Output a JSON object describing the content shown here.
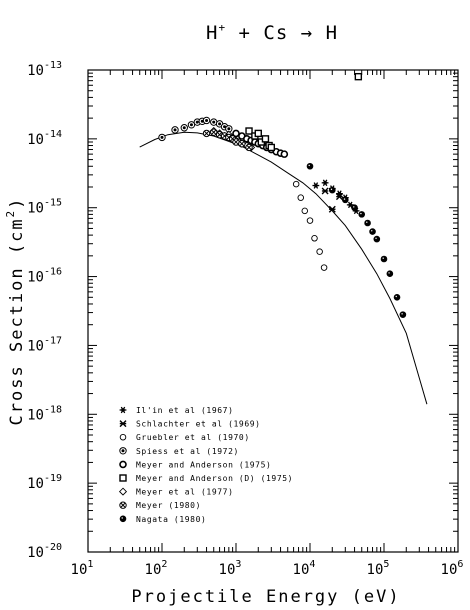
{
  "chart_data": {
    "type": "scatter",
    "title": "H⁺ + Cs → H",
    "title_parts": {
      "left": "H",
      "sup": "+",
      "right": " + Cs → H"
    },
    "xlabel": "Projectile Energy (eV)",
    "ylabel": "Cross Section (cm²)",
    "ylabel_parts": {
      "base": "Cross Section (cm",
      "sup": "2",
      "close": ")"
    },
    "x_scale": "log",
    "y_scale": "log",
    "xlim": [
      10,
      1000000
    ],
    "ylim": [
      1e-20,
      1e-13
    ],
    "x_ticks": [
      {
        "value": 10,
        "base": "10",
        "exp": "1"
      },
      {
        "value": 100,
        "base": "10",
        "exp": "2"
      },
      {
        "value": 1000,
        "base": "10",
        "exp": "3"
      },
      {
        "value": 10000,
        "base": "10",
        "exp": "4"
      },
      {
        "value": 100000,
        "base": "10",
        "exp": "5"
      },
      {
        "value": 1000000,
        "base": "10",
        "exp": "6"
      }
    ],
    "y_ticks": [
      {
        "value": 1e-20,
        "base": "10",
        "exp": "-20"
      },
      {
        "value": 1e-19,
        "base": "10",
        "exp": "-19"
      },
      {
        "value": 1e-18,
        "base": "10",
        "exp": "-18"
      },
      {
        "value": 1e-17,
        "base": "10",
        "exp": "-17"
      },
      {
        "value": 1e-16,
        "base": "10",
        "exp": "-16"
      },
      {
        "value": 1e-15,
        "base": "10",
        "exp": "-15"
      },
      {
        "value": 1e-14,
        "base": "10",
        "exp": "-14"
      },
      {
        "value": 1e-13,
        "base": "10",
        "exp": "-13"
      }
    ],
    "grid": false,
    "legend_position": "lower-left",
    "fit_curve": {
      "x": [
        50,
        80,
        120,
        200,
        300,
        500,
        800,
        1200,
        2000,
        3000,
        5000,
        8000,
        12000,
        20000,
        30000,
        50000,
        80000,
        120000,
        200000,
        380000
      ],
      "y": [
        7.6e-15,
        9.8e-15,
        1.15e-14,
        1.25e-14,
        1.22e-14,
        1.1e-14,
        9.2e-15,
        7.8e-15,
        5.8e-15,
        4.6e-15,
        3.2e-15,
        2.3e-15,
        1.6e-15,
        9e-16,
        5.5e-16,
        2.5e-16,
        1.1e-16,
        4.8e-17,
        1.5e-17,
        1.4e-18
      ]
    },
    "series": [
      {
        "name": "Il'in et al (1967)",
        "marker": "asterisk",
        "x": [
          12000,
          16000,
          20000,
          25000,
          30000,
          35000,
          42000
        ],
        "y": [
          2.1e-15,
          2.3e-15,
          1.9e-15,
          1.6e-15,
          1.4e-15,
          1.1e-15,
          9e-16
        ]
      },
      {
        "name": "Schlachter et al (1969)",
        "marker": "x-star",
        "x": [
          16000,
          20000,
          25000
        ],
        "y": [
          1.75e-15,
          9.5e-16,
          1.45e-15
        ]
      },
      {
        "name": "Gruebler et al (1970)",
        "marker": "open-circle",
        "x": [
          6500,
          7500,
          8500,
          10000,
          11500,
          13500,
          15500
        ],
        "y": [
          2.2e-15,
          1.4e-15,
          9e-16,
          6.5e-16,
          3.6e-16,
          2.3e-16,
          1.35e-16
        ]
      },
      {
        "name": "Spiess et al (1972)",
        "marker": "circle-dot",
        "x": [
          100,
          150,
          200,
          250,
          300,
          350,
          400,
          500,
          600,
          700,
          800
        ],
        "y": [
          1.05e-14,
          1.35e-14,
          1.45e-14,
          1.6e-14,
          1.75e-14,
          1.8e-14,
          1.85e-14,
          1.75e-14,
          1.65e-14,
          1.5e-14,
          1.4e-14
        ]
      },
      {
        "name": "Meyer and Anderson (1975)",
        "marker": "open-circle-thick",
        "x": [
          1000,
          1200,
          1400,
          1600,
          1800,
          2000,
          2300,
          2600,
          3000,
          3500,
          4000,
          4500
        ],
        "y": [
          1.2e-14,
          1.1e-14,
          1e-14,
          9.5e-15,
          9e-15,
          8.5e-15,
          8e-15,
          7.5e-15,
          7e-15,
          6.5e-15,
          6.2e-15,
          6e-15
        ]
      },
      {
        "name": "Meyer and Anderson (D) (1975)",
        "marker": "open-square",
        "x": [
          1500,
          1800,
          2000,
          2200,
          2500,
          2800,
          3000,
          45000
        ],
        "y": [
          1.3e-14,
          1.1e-14,
          1.2e-14,
          9e-15,
          1e-14,
          8e-15,
          7.5e-15,
          8e-14
        ]
      },
      {
        "name": "Meyer et al (1977)",
        "marker": "open-diamond",
        "x": [
          500,
          600,
          700,
          800,
          900,
          1000,
          1100,
          1200,
          1400,
          1600
        ],
        "y": [
          1.3e-14,
          1.2e-14,
          1.1e-14,
          1.15e-14,
          1e-14,
          9.5e-15,
          9e-15,
          8.5e-15,
          8e-15,
          7.5e-15
        ]
      },
      {
        "name": "Meyer (1980)",
        "marker": "circle-x",
        "x": [
          400,
          500,
          600,
          700,
          800,
          900,
          1000,
          1200,
          1500
        ],
        "y": [
          1.2e-14,
          1.25e-14,
          1.15e-14,
          1.1e-14,
          1.05e-14,
          1e-14,
          9e-15,
          8.5e-15,
          7.5e-15
        ]
      },
      {
        "name": "Nagata (1980)",
        "marker": "filled-circle",
        "x": [
          10000,
          20000,
          30000,
          40000,
          50000,
          60000,
          70000,
          80000,
          100000,
          120000,
          150000,
          180000
        ],
        "y": [
          4e-15,
          1.8e-15,
          1.3e-15,
          1e-15,
          8e-16,
          6e-16,
          4.5e-16,
          3.5e-16,
          1.8e-16,
          1.1e-16,
          5e-17,
          2.8e-17
        ]
      }
    ]
  }
}
